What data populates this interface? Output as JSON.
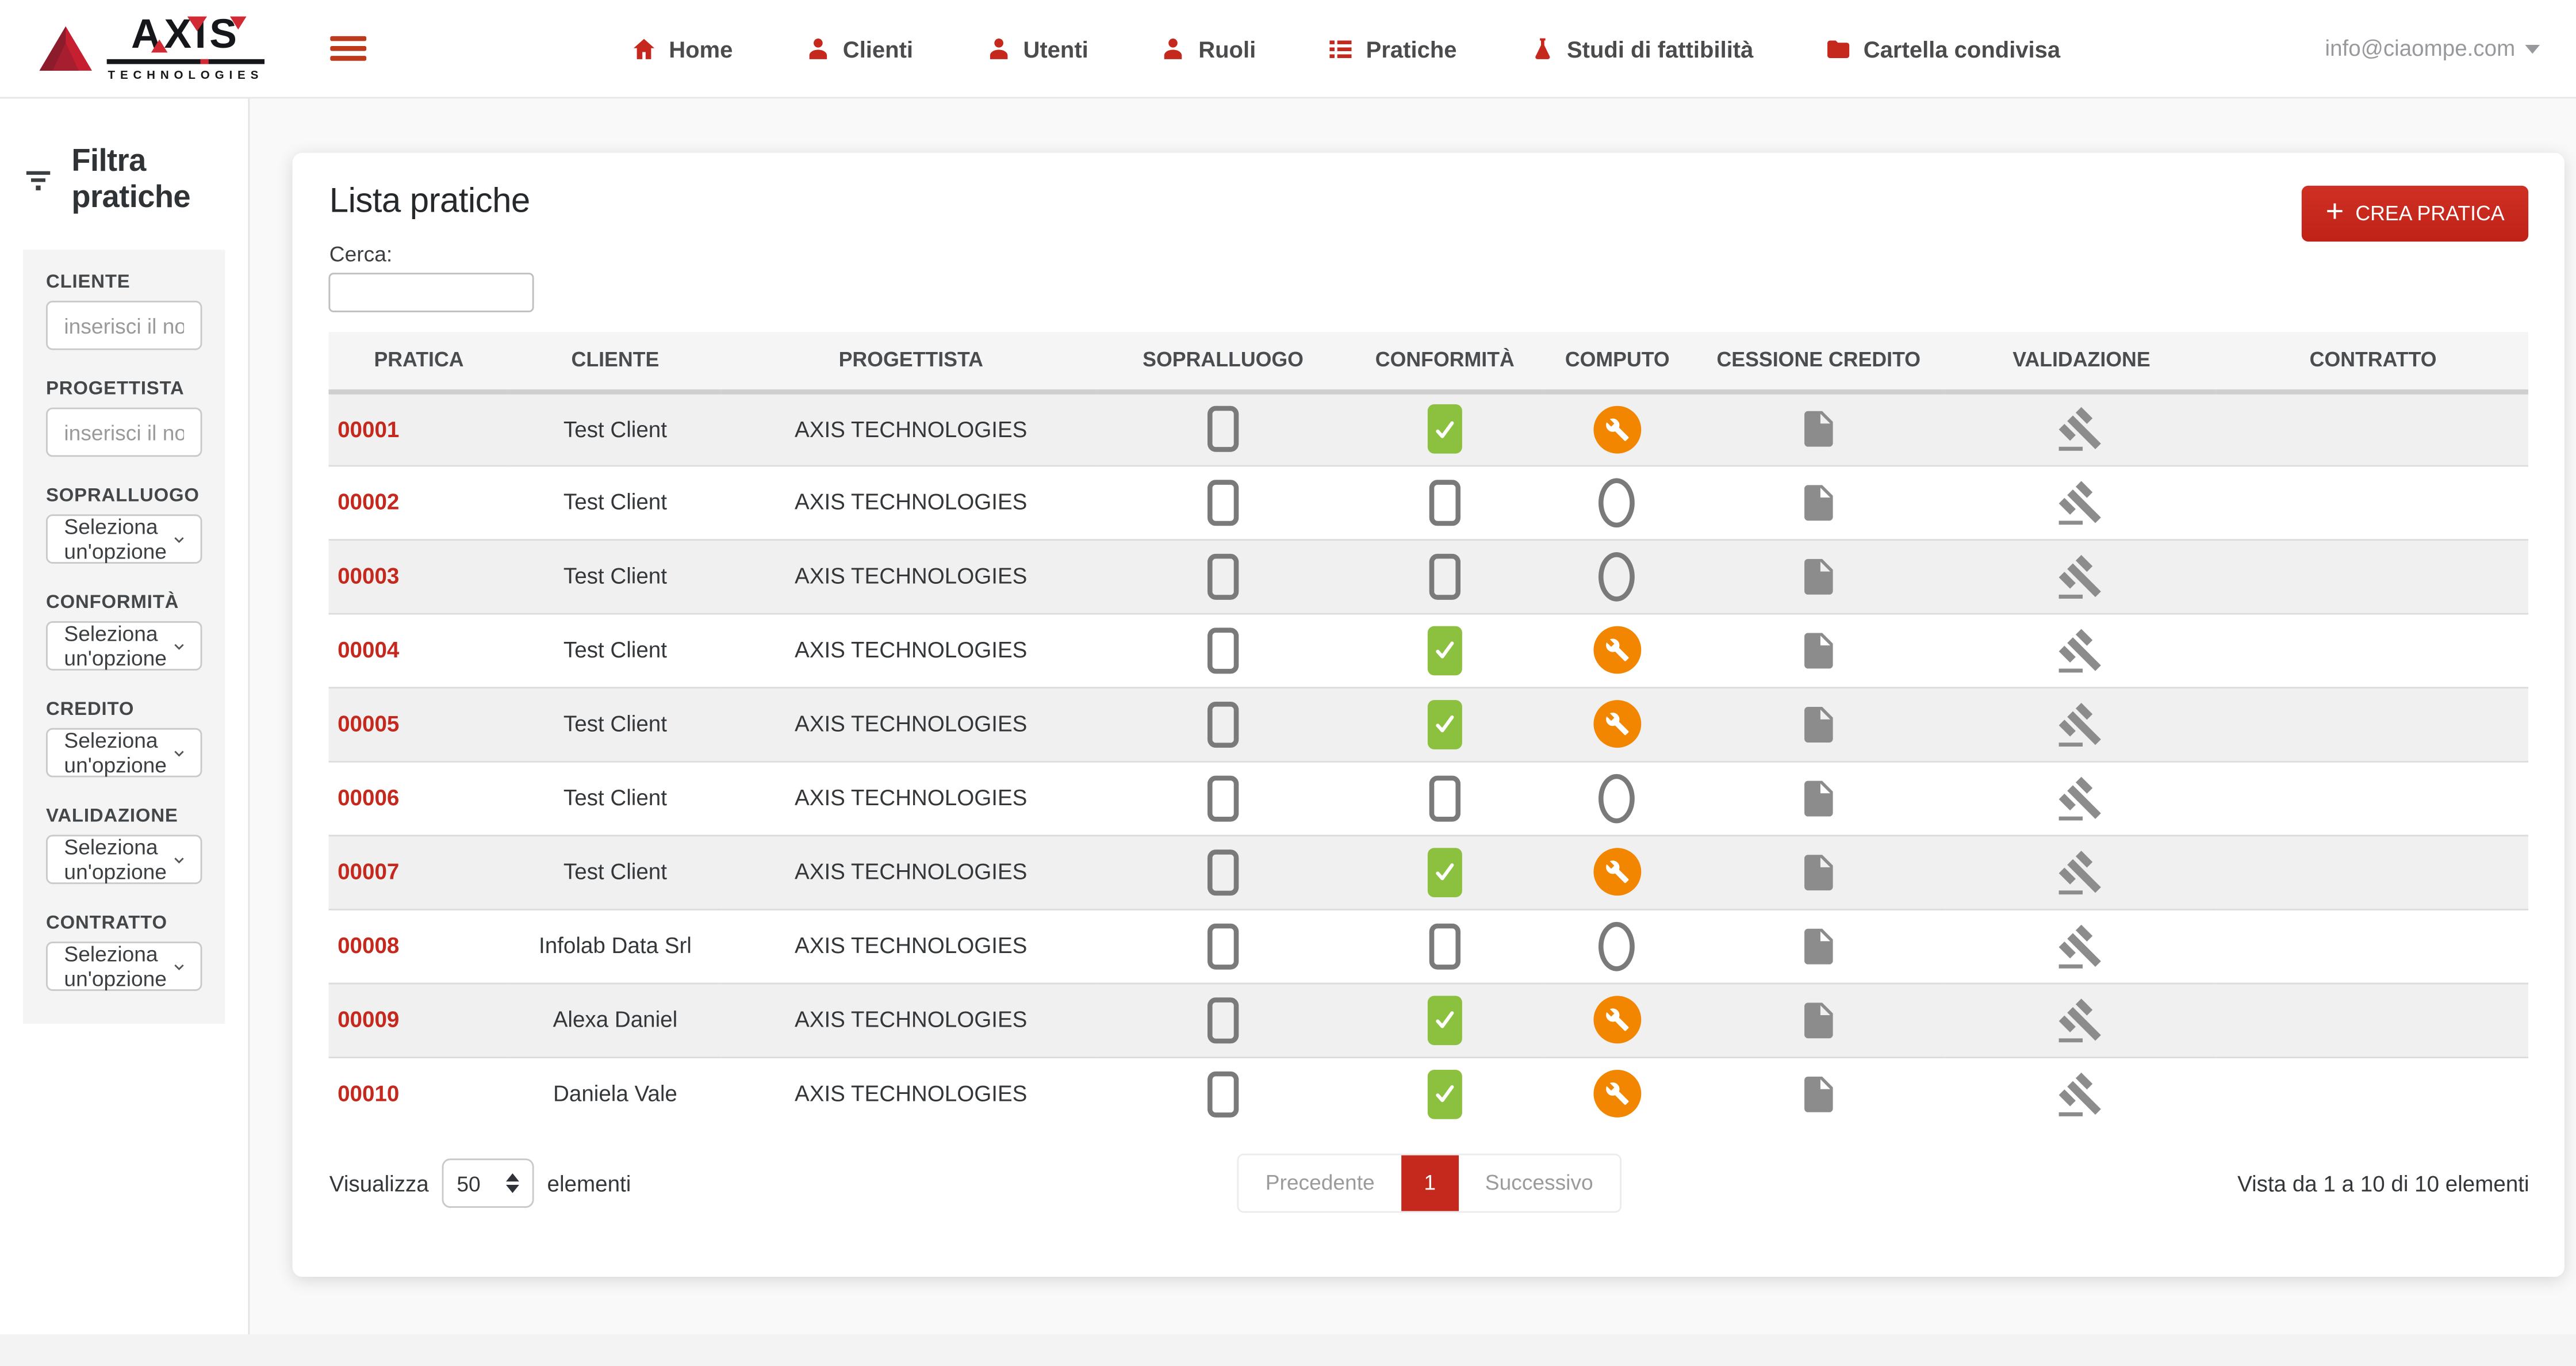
{
  "brand": {
    "name": "AXIS",
    "subname": "TECHNOLOGIES"
  },
  "navbar": {
    "items": [
      {
        "label": "Home",
        "icon": "home-icon"
      },
      {
        "label": "Clienti",
        "icon": "person-icon"
      },
      {
        "label": "Utenti",
        "icon": "person-icon"
      },
      {
        "label": "Ruoli",
        "icon": "person-icon"
      },
      {
        "label": "Pratiche",
        "icon": "list-icon"
      },
      {
        "label": "Studi di fattibilità",
        "icon": "flask-icon"
      },
      {
        "label": "Cartella condivisa",
        "icon": "folder-icon"
      }
    ],
    "user_email": "info@ciaompe.com"
  },
  "sidebar": {
    "title": "Filtra pratiche",
    "filters": [
      {
        "label": "CLIENTE",
        "type": "text",
        "placeholder": "inserisci il nome..."
      },
      {
        "label": "PROGETTISTA",
        "type": "text",
        "placeholder": "inserisci il nome..."
      },
      {
        "label": "SOPRALLUOGO",
        "type": "select",
        "value": "Seleziona un'opzione"
      },
      {
        "label": "CONFORMITÀ",
        "type": "select",
        "value": "Seleziona un'opzione"
      },
      {
        "label": "CREDITO",
        "type": "select",
        "value": "Seleziona un'opzione"
      },
      {
        "label": "VALIDAZIONE",
        "type": "select",
        "value": "Seleziona un'opzione"
      },
      {
        "label": "CONTRATTO",
        "type": "select",
        "value": "Seleziona un'opzione"
      }
    ]
  },
  "card": {
    "title": "Lista pratiche",
    "search_label": "Cerca:",
    "search_value": "",
    "create_button": "CREA PRATICA",
    "table": {
      "headers": [
        "PRATICA",
        "CLIENTE",
        "PROGETTISTA",
        "SOPRALLUOGO",
        "CONFORMITÀ",
        "COMPUTO",
        "CESSIONE CREDITO",
        "VALIDAZIONE",
        "CONTRATTO"
      ],
      "rows": [
        {
          "pratica": "00001",
          "cliente": "Test Client",
          "progettista": "AXIS TECHNOLOGIES",
          "sopralluogo": "empty-checkbox",
          "conformita": "checked",
          "computo": "in-progress",
          "cessione_credito": "document",
          "validazione": "gavel"
        },
        {
          "pratica": "00002",
          "cliente": "Test Client",
          "progettista": "AXIS TECHNOLOGIES",
          "sopralluogo": "empty-checkbox",
          "conformita": "empty-checkbox",
          "computo": "not-started",
          "cessione_credito": "document",
          "validazione": "gavel"
        },
        {
          "pratica": "00003",
          "cliente": "Test Client",
          "progettista": "AXIS TECHNOLOGIES",
          "sopralluogo": "empty-checkbox",
          "conformita": "empty-checkbox",
          "computo": "not-started",
          "cessione_credito": "document",
          "validazione": "gavel"
        },
        {
          "pratica": "00004",
          "cliente": "Test Client",
          "progettista": "AXIS TECHNOLOGIES",
          "sopralluogo": "empty-checkbox",
          "conformita": "checked",
          "computo": "in-progress",
          "cessione_credito": "document",
          "validazione": "gavel"
        },
        {
          "pratica": "00005",
          "cliente": "Test Client",
          "progettista": "AXIS TECHNOLOGIES",
          "sopralluogo": "empty-checkbox",
          "conformita": "checked",
          "computo": "in-progress",
          "cessione_credito": "document",
          "validazione": "gavel"
        },
        {
          "pratica": "00006",
          "cliente": "Test Client",
          "progettista": "AXIS TECHNOLOGIES",
          "sopralluogo": "empty-checkbox",
          "conformita": "empty-checkbox",
          "computo": "not-started",
          "cessione_credito": "document",
          "validazione": "gavel"
        },
        {
          "pratica": "00007",
          "cliente": "Test Client",
          "progettista": "AXIS TECHNOLOGIES",
          "sopralluogo": "empty-checkbox",
          "conformita": "checked",
          "computo": "in-progress",
          "cessione_credito": "document",
          "validazione": "gavel"
        },
        {
          "pratica": "00008",
          "cliente": "Infolab Data Srl",
          "progettista": "AXIS TECHNOLOGIES",
          "sopralluogo": "empty-checkbox",
          "conformita": "empty-checkbox",
          "computo": "not-started",
          "cessione_credito": "document",
          "validazione": "gavel"
        },
        {
          "pratica": "00009",
          "cliente": "Alexa Daniel",
          "progettista": "AXIS TECHNOLOGIES",
          "sopralluogo": "empty-checkbox",
          "conformita": "checked",
          "computo": "in-progress",
          "cessione_credito": "document",
          "validazione": "gavel"
        },
        {
          "pratica": "00010",
          "cliente": "Daniela Vale",
          "progettista": "AXIS TECHNOLOGIES",
          "sopralluogo": "empty-checkbox",
          "conformita": "checked",
          "computo": "in-progress",
          "cessione_credito": "document",
          "validazione": "gavel"
        }
      ]
    },
    "footer": {
      "show_before": "Visualizza",
      "page_size": "50",
      "show_after": "elementi",
      "pagination": {
        "prev": "Precedente",
        "current": "1",
        "next": "Successivo"
      },
      "info": "Vista da 1 a 10 di 10 elementi"
    }
  },
  "colors": {
    "accent_red": "#c5281c",
    "status_green": "#8cc03f",
    "status_orange": "#f28600",
    "icon_gray": "#8c8c8c"
  }
}
